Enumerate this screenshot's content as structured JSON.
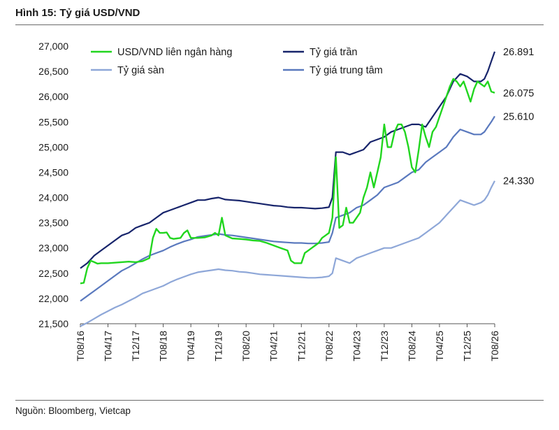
{
  "header": {
    "title": "Hình 15: Tỷ giá USD/VND"
  },
  "footer": {
    "source": "Nguồn: Bloomberg, Vietcap"
  },
  "chart_data": {
    "type": "line",
    "ylim": [
      21500,
      27000
    ],
    "yticks": [
      "27,000",
      "26,500",
      "26,000",
      "25,500",
      "25,000",
      "24,500",
      "24,000",
      "23,500",
      "23,000",
      "22,500",
      "22,000",
      "21,500"
    ],
    "ytick_values": [
      27000,
      26500,
      26000,
      25500,
      25000,
      24500,
      24000,
      23500,
      23000,
      22500,
      22000,
      21500
    ],
    "xlim": [
      0,
      120
    ],
    "xticks": [
      {
        "label": "T08/16",
        "x": 0
      },
      {
        "label": "T04/17",
        "x": 8
      },
      {
        "label": "T12/17",
        "x": 16
      },
      {
        "label": "T08/18",
        "x": 24
      },
      {
        "label": "T04/19",
        "x": 32
      },
      {
        "label": "T12/19",
        "x": 40
      },
      {
        "label": "T08/20",
        "x": 48
      },
      {
        "label": "T04/21",
        "x": 56
      },
      {
        "label": "T12/21",
        "x": 64
      },
      {
        "label": "T08/22",
        "x": 72
      },
      {
        "label": "T04/23",
        "x": 80
      },
      {
        "label": "T12/23",
        "x": 88
      },
      {
        "label": "T08/24",
        "x": 96
      },
      {
        "label": "T04/25",
        "x": 104
      },
      {
        "label": "T12/25",
        "x": 112
      },
      {
        "label": "T08/26",
        "x": 120
      }
    ],
    "legend_position": "top",
    "series": [
      {
        "name": "USD/VND liên ngân hàng",
        "color": "#21d61f",
        "end_label": "26.075",
        "x": [
          0,
          1,
          2,
          3,
          4,
          5,
          6,
          8,
          10,
          12,
          14,
          16,
          18,
          20,
          21,
          22,
          23,
          24,
          25,
          26,
          27,
          28,
          29,
          30,
          31,
          32,
          34,
          36,
          38,
          39,
          40,
          41,
          42,
          44,
          46,
          48,
          50,
          52,
          54,
          56,
          58,
          60,
          61,
          62,
          63,
          64,
          65,
          66,
          67,
          68,
          69,
          70,
          71,
          72,
          73,
          74,
          75,
          76,
          77,
          78,
          79,
          80,
          81,
          82,
          83,
          84,
          85,
          86,
          87,
          88,
          89,
          90,
          91,
          92,
          93,
          94,
          95,
          96,
          97,
          98,
          99,
          100,
          101,
          102,
          103,
          104,
          105,
          106,
          107,
          108,
          109,
          110,
          111,
          112,
          113,
          114,
          115,
          116,
          117,
          118,
          119,
          120
        ],
        "y": [
          22300,
          22310,
          22600,
          22750,
          22720,
          22690,
          22700,
          22700,
          22710,
          22720,
          22730,
          22720,
          22740,
          22800,
          23200,
          23380,
          23300,
          23300,
          23310,
          23200,
          23180,
          23190,
          23200,
          23300,
          23350,
          23200,
          23200,
          23210,
          23250,
          23300,
          23250,
          23600,
          23250,
          23190,
          23180,
          23170,
          23150,
          23140,
          23100,
          23050,
          23000,
          22950,
          22750,
          22700,
          22700,
          22700,
          22900,
          22950,
          23000,
          23050,
          23100,
          23200,
          23250,
          23300,
          23600,
          24800,
          23400,
          23450,
          23800,
          23500,
          23500,
          23600,
          23700,
          24000,
          24200,
          24500,
          24200,
          24500,
          24800,
          25450,
          25000,
          25000,
          25300,
          25450,
          25450,
          25300,
          25000,
          24600,
          24500,
          24950,
          25450,
          25200,
          25000,
          25300,
          25400,
          25600,
          25800,
          26000,
          26200,
          26350,
          26300,
          26200,
          26300,
          26100,
          25900,
          26150,
          26300,
          26250,
          26200,
          26300,
          26100,
          26075
        ]
      },
      {
        "name": "Tỷ giá trần",
        "color": "#17246b",
        "end_label": "26.891",
        "x": [
          0,
          2,
          4,
          6,
          8,
          10,
          12,
          14,
          16,
          18,
          20,
          22,
          24,
          26,
          28,
          30,
          32,
          34,
          36,
          38,
          40,
          42,
          44,
          46,
          48,
          50,
          52,
          54,
          56,
          58,
          60,
          62,
          64,
          66,
          68,
          70,
          71,
          72,
          73,
          74,
          76,
          78,
          80,
          82,
          84,
          86,
          88,
          90,
          92,
          94,
          96,
          98,
          100,
          102,
          104,
          106,
          108,
          110,
          112,
          114,
          116,
          117,
          118,
          119,
          120
        ],
        "y": [
          22600,
          22700,
          22850,
          22950,
          23050,
          23150,
          23250,
          23300,
          23400,
          23450,
          23500,
          23600,
          23700,
          23750,
          23800,
          23850,
          23900,
          23950,
          23950,
          23980,
          24000,
          23960,
          23950,
          23940,
          23920,
          23900,
          23880,
          23860,
          23840,
          23830,
          23810,
          23800,
          23800,
          23790,
          23780,
          23790,
          23800,
          23810,
          24000,
          24900,
          24900,
          24850,
          24900,
          24950,
          25100,
          25150,
          25200,
          25300,
          25350,
          25400,
          25450,
          25450,
          25400,
          25600,
          25800,
          26000,
          26300,
          26450,
          26400,
          26300,
          26300,
          26350,
          26500,
          26700,
          26891
        ]
      },
      {
        "name": "Tỷ giá sàn",
        "color": "#8ea7d8",
        "end_label": "24.330",
        "x": [
          0,
          2,
          4,
          6,
          8,
          10,
          12,
          14,
          16,
          18,
          20,
          22,
          24,
          26,
          28,
          30,
          32,
          34,
          36,
          38,
          40,
          42,
          44,
          46,
          48,
          50,
          52,
          54,
          56,
          58,
          60,
          62,
          64,
          66,
          68,
          70,
          71,
          72,
          73,
          74,
          76,
          78,
          80,
          82,
          84,
          86,
          88,
          90,
          92,
          94,
          96,
          98,
          100,
          102,
          104,
          106,
          108,
          110,
          112,
          114,
          116,
          117,
          118,
          119,
          120
        ],
        "y": [
          21450,
          21520,
          21600,
          21680,
          21750,
          21820,
          21880,
          21950,
          22020,
          22100,
          22150,
          22200,
          22250,
          22320,
          22380,
          22430,
          22480,
          22520,
          22540,
          22560,
          22580,
          22560,
          22550,
          22530,
          22520,
          22500,
          22480,
          22470,
          22460,
          22450,
          22440,
          22430,
          22420,
          22410,
          22410,
          22420,
          22430,
          22440,
          22500,
          22800,
          22750,
          22700,
          22800,
          22850,
          22900,
          22950,
          23000,
          23000,
          23050,
          23100,
          23150,
          23200,
          23300,
          23400,
          23500,
          23650,
          23800,
          23950,
          23900,
          23850,
          23900,
          23950,
          24050,
          24200,
          24330
        ]
      },
      {
        "name": "Tỷ giá trung tâm",
        "color": "#5a79be",
        "end_label": "25.610",
        "x": [
          0,
          2,
          4,
          6,
          8,
          10,
          12,
          14,
          16,
          18,
          20,
          22,
          24,
          26,
          28,
          30,
          32,
          34,
          36,
          38,
          40,
          42,
          44,
          46,
          48,
          50,
          52,
          54,
          56,
          58,
          60,
          62,
          64,
          66,
          68,
          70,
          71,
          72,
          73,
          74,
          76,
          78,
          80,
          82,
          84,
          86,
          88,
          90,
          92,
          94,
          96,
          98,
          100,
          102,
          104,
          106,
          108,
          110,
          112,
          114,
          116,
          117,
          118,
          119,
          120
        ],
        "y": [
          21950,
          22050,
          22150,
          22250,
          22350,
          22450,
          22550,
          22620,
          22700,
          22780,
          22850,
          22900,
          22950,
          23020,
          23080,
          23130,
          23170,
          23220,
          23240,
          23260,
          23280,
          23260,
          23250,
          23230,
          23210,
          23190,
          23170,
          23150,
          23130,
          23120,
          23110,
          23100,
          23100,
          23090,
          23090,
          23100,
          23110,
          23120,
          23300,
          23600,
          23650,
          23700,
          23800,
          23850,
          23950,
          24050,
          24200,
          24250,
          24300,
          24400,
          24500,
          24550,
          24700,
          24800,
          24900,
          25000,
          25200,
          25350,
          25300,
          25250,
          25250,
          25300,
          25400,
          25500,
          25610
        ]
      }
    ]
  }
}
